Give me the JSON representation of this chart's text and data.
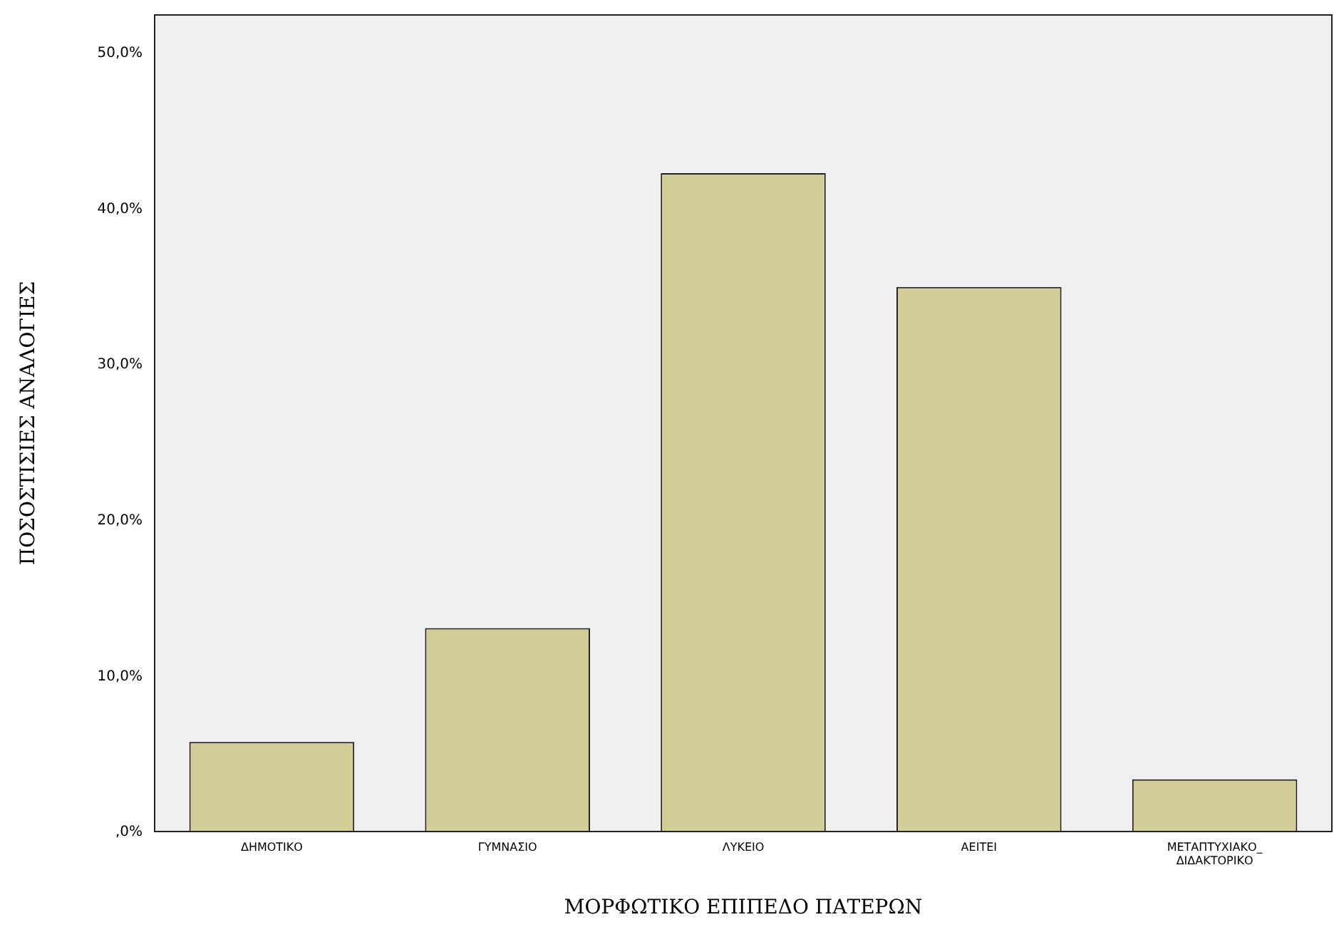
{
  "chart_data": {
    "type": "bar",
    "xlabel": "ΜΟΡΦΩΤΙΚΟ ΕΠΙΠΕΔΟ ΠΑΤΕΡΩΝ",
    "ylabel": "ΠΟΣΟΣΤΙΣΙΕΣ ΑΝΑΛΟΓΙΕΣ",
    "categories": [
      "ΔΗΜΟΤΙΚΟ",
      "ΓΥΜΝΑΣΙΟ",
      "ΛΥΚΕΙΟ",
      "ΑΕΙΤΕΙ",
      "ΜΕΤΑΠΤΥΧΙΑΚΟ_ΔΙΔΑΚΤΟΡΙΚΟ"
    ],
    "values": [
      5.8,
      13.1,
      42.3,
      35.0,
      3.4
    ],
    "color": "#d3ce98",
    "ylim": [
      0,
      52.5
    ],
    "yticks": [
      {
        "value": 0,
        "label": ",0%"
      },
      {
        "value": 10,
        "label": "10,0%"
      },
      {
        "value": 20,
        "label": "20,0%"
      },
      {
        "value": 30,
        "label": "30,0%"
      },
      {
        "value": 40,
        "label": "40,0%"
      },
      {
        "value": 50,
        "label": "50,0%"
      }
    ],
    "grid": false,
    "legend": false
  }
}
